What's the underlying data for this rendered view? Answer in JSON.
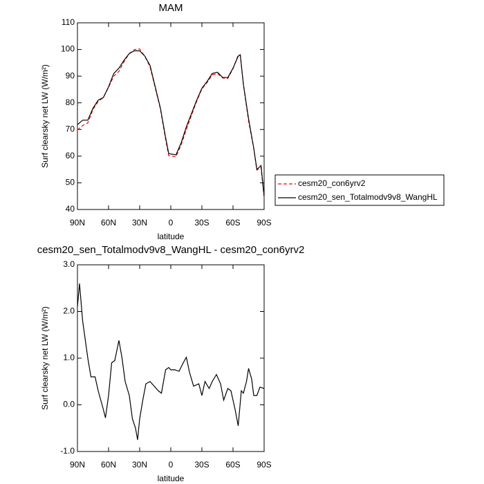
{
  "chart_data": [
    {
      "type": "line",
      "title": "MAM",
      "x_label": "latitude",
      "y_label": "Surf clearsky net LW (W/m²)",
      "x": [
        90,
        85,
        80,
        75,
        70,
        65,
        60,
        55,
        50,
        45,
        40,
        35,
        30,
        25,
        20,
        15,
        10,
        5,
        2,
        0,
        -5,
        -10,
        -15,
        -20,
        -25,
        -30,
        -35,
        -40,
        -45,
        -50,
        -55,
        -60,
        -65,
        -67,
        -70,
        -75,
        -80,
        -83,
        -87,
        -90
      ],
      "series": [
        {
          "name": "cesm20_con6yrv2",
          "color": "#ff0000",
          "line_style": "dashed",
          "values": [
            69.8,
            71.5,
            72.5,
            77.5,
            80.5,
            82,
            85.8,
            90,
            91.8,
            95.5,
            98.5,
            100,
            100.2,
            97.4,
            93.5,
            85.6,
            77.7,
            66.3,
            60.2,
            60,
            59.8,
            64.2,
            70,
            75.4,
            80.6,
            85.2,
            87.6,
            90.5,
            91,
            89.3,
            89.1,
            92.8,
            97.9,
            98,
            86.8,
            73.2,
            62.8,
            54.8,
            55.8,
            44.6
          ]
        },
        {
          "name": "cesm20_sen_Totalmodv9v8_WangHL",
          "color": "#000000",
          "line_style": "solid",
          "values": [
            71.8,
            73.5,
            73.5,
            78,
            81,
            82,
            86,
            91,
            93,
            96,
            98.5,
            99.5,
            99.5,
            97.5,
            94,
            86,
            78,
            67,
            61,
            60.8,
            60.5,
            65,
            71,
            76,
            81,
            85.5,
            88,
            91,
            91.5,
            89.5,
            89.5,
            93,
            97.5,
            98,
            87,
            74,
            63,
            55,
            56.5,
            45
          ]
        }
      ],
      "xlim": [
        90,
        -90
      ],
      "ylim": [
        40,
        110
      ],
      "xticks": [
        {
          "value": 90,
          "label": "90N"
        },
        {
          "value": 60,
          "label": "60N"
        },
        {
          "value": 30,
          "label": "30N"
        },
        0,
        {
          "value": -30,
          "label": "30S"
        },
        {
          "value": -60,
          "label": "60S"
        },
        {
          "value": -90,
          "label": "90S"
        }
      ],
      "yticks": [
        40,
        50,
        60,
        70,
        80,
        90,
        100,
        110
      ],
      "legend": "right"
    },
    {
      "type": "line",
      "title": "cesm20_sen_Totalmodv9v8_WangHL - cesm20_con6yrv2",
      "x_label": "latitude",
      "y_label": "Surf clearsky net LW (W/m²)",
      "x": [
        90,
        88,
        85,
        80,
        77,
        73,
        70,
        65,
        63,
        60,
        57,
        54,
        50,
        47,
        44,
        40,
        37,
        34,
        32,
        30,
        27,
        24,
        20,
        16,
        12,
        9,
        5,
        2,
        0,
        -4,
        -8,
        -12,
        -15,
        -18,
        -22,
        -27,
        -30,
        -33,
        -37,
        -40,
        -44,
        -48,
        -51,
        -55,
        -58,
        -62,
        -65,
        -68,
        -70,
        -73,
        -75,
        -78,
        -80,
        -83,
        -86,
        -90
      ],
      "series": [
        {
          "color": "#000000",
          "line_style": "solid",
          "values": [
            2.1,
            2.6,
            1.8,
            1.0,
            0.6,
            0.6,
            0.3,
            -0.1,
            -0.28,
            0.2,
            0.9,
            0.95,
            1.38,
            1.0,
            0.5,
            0.2,
            -0.3,
            -0.5,
            -0.75,
            -0.3,
            0.1,
            0.45,
            0.5,
            0.4,
            0.3,
            0.25,
            0.75,
            0.8,
            0.75,
            0.75,
            0.72,
            0.9,
            1.02,
            0.7,
            0.4,
            0.45,
            0.2,
            0.5,
            0.35,
            0.5,
            0.65,
            0.45,
            0.1,
            0.35,
            0.3,
            -0.1,
            -0.45,
            0.3,
            0.25,
            0.5,
            0.78,
            0.55,
            0.2,
            0.2,
            0.38,
            0.35
          ]
        }
      ],
      "xlim": [
        90,
        -90
      ],
      "ylim": [
        -1,
        3
      ],
      "xticks": [
        {
          "value": 90,
          "label": "90N"
        },
        {
          "value": 60,
          "label": "60N"
        },
        {
          "value": 30,
          "label": "30N"
        },
        0,
        {
          "value": -30,
          "label": "30S"
        },
        {
          "value": -60,
          "label": "60S"
        },
        {
          "value": -90,
          "label": "90S"
        }
      ],
      "yticks": [
        {
          "value": -1,
          "label": "-1.0"
        },
        {
          "value": 0,
          "label": "0.0"
        },
        {
          "value": 1,
          "label": "1.0"
        },
        {
          "value": 2,
          "label": "2.0"
        },
        {
          "value": 3,
          "label": "3.0"
        }
      ]
    }
  ]
}
